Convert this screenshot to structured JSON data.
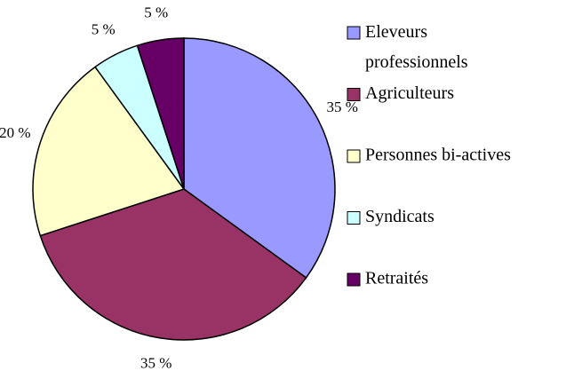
{
  "chart_data": {
    "type": "pie",
    "categories": [
      "Eleveurs professionnels",
      "Agriculteurs",
      "Personnes bi-actives",
      "Syndicats",
      "Retraités"
    ],
    "values": [
      35,
      35,
      20,
      5,
      5
    ],
    "value_labels": [
      "35 %",
      "35 %",
      "20 %",
      "5 %",
      "5 %"
    ],
    "colors": [
      "#9999ff",
      "#993366",
      "#ffffcc",
      "#ccffff",
      "#660066"
    ],
    "legend": "right"
  }
}
